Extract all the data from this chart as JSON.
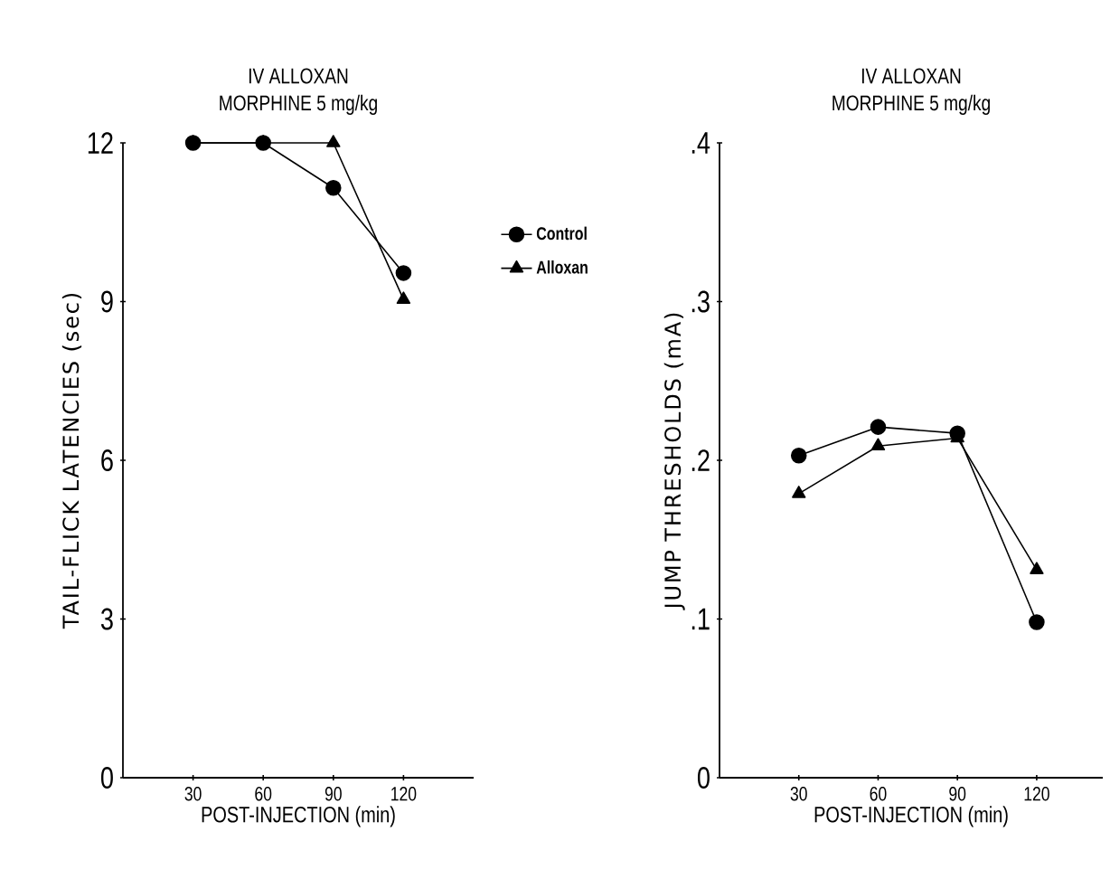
{
  "chart_data": [
    {
      "type": "line",
      "title": "IV ALLOXAN",
      "subtitle": "MORPHINE 5 mg/kg",
      "xlabel": "POST-INJECTION (min)",
      "ylabel": "TAIL-FLICK LATENCIES (sec)",
      "x": [
        30,
        60,
        90,
        120
      ],
      "xlim": [
        0,
        150
      ],
      "xticks": [
        30,
        60,
        90,
        120
      ],
      "ylim": [
        0,
        12
      ],
      "yticks": [
        0,
        3,
        6,
        9,
        12
      ],
      "grid": false,
      "legend": "right",
      "line_style": "solid",
      "series": [
        {
          "name": "Control",
          "color": "#000000",
          "marker": "circle",
          "values": [
            12,
            12,
            11.15,
            9.54
          ]
        },
        {
          "name": "Alloxan",
          "color": "#000000",
          "marker": "triangle",
          "values": [
            12,
            12,
            12,
            9.04
          ]
        }
      ]
    },
    {
      "type": "line",
      "title": "IV ALLOXAN",
      "subtitle": "MORPHINE 5 mg/kg",
      "xlabel": "POST-INJECTION (min)",
      "ylabel": "JUMP THRESHOLDS (mA)",
      "x": [
        30,
        60,
        90,
        120
      ],
      "xlim": [
        0,
        145
      ],
      "xticks": [
        30,
        60,
        90,
        120
      ],
      "ylim": [
        0,
        0.4
      ],
      "yticks": [
        0,
        {
          "value": 0.1,
          "label": ".1"
        },
        {
          "value": 0.2,
          "label": ".2"
        },
        {
          "value": 0.3,
          "label": ".3"
        },
        {
          "value": 0.4,
          "label": ".4"
        }
      ],
      "grid": false,
      "line_style": "solid",
      "series": [
        {
          "color": "#000000",
          "marker": "circle",
          "values": [
            0.203,
            0.221,
            0.217,
            0.098
          ]
        },
        {
          "color": "#000000",
          "marker": "triangle",
          "values": [
            0.179,
            0.209,
            0.214,
            0.131
          ]
        }
      ]
    }
  ]
}
